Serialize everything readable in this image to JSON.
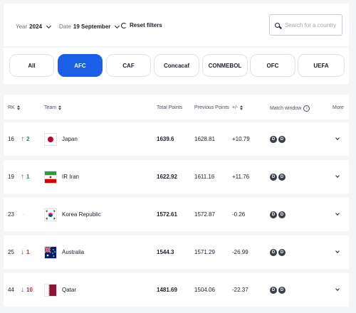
{
  "filters": {
    "year_label": "Year",
    "year_value": "2024",
    "date_label": "Date",
    "date_value": "19 September",
    "reset_label": "Reset filters",
    "search_placeholder": "Search for a country"
  },
  "tabs": [
    {
      "label": "All",
      "active": false
    },
    {
      "label": "AFC",
      "active": true
    },
    {
      "label": "CAF",
      "active": false
    },
    {
      "label": "Concacaf",
      "active": false
    },
    {
      "label": "CONMEBOL",
      "active": false
    },
    {
      "label": "OFC",
      "active": false
    },
    {
      "label": "UEFA",
      "active": false
    }
  ],
  "table": {
    "headers": {
      "rk": "RK",
      "team": "Team",
      "total": "Total Points",
      "previous": "Previous Points",
      "diff": "+/-",
      "match_window": "Match window",
      "more": "More"
    },
    "rows": [
      {
        "rank": "16",
        "move_dir": "up",
        "move": "2",
        "team": "Japan",
        "total": "1639.6",
        "previous": "1628.81",
        "diff": "+10.79",
        "windows": [
          "D",
          "D"
        ]
      },
      {
        "rank": "19",
        "move_dir": "up",
        "move": "1",
        "team": "IR Iran",
        "total": "1622.92",
        "previous": "1611.16",
        "diff": "+11.76",
        "windows": [
          "D",
          "D"
        ]
      },
      {
        "rank": "23",
        "move_dir": "none",
        "move": "",
        "team": "Korea Republic",
        "total": "1572.61",
        "previous": "1572.87",
        "diff": "-0.26",
        "windows": [
          "D",
          "D"
        ]
      },
      {
        "rank": "25",
        "move_dir": "down",
        "move": "1",
        "team": "Australia",
        "total": "1544.3",
        "previous": "1571.29",
        "diff": "-26.99",
        "windows": [
          "D",
          "D"
        ]
      },
      {
        "rank": "44",
        "move_dir": "down",
        "move": "10",
        "team": "Qatar",
        "total": "1481.69",
        "previous": "1504.06",
        "diff": "-22.37",
        "windows": [
          "D",
          "D"
        ]
      }
    ]
  },
  "icons": {
    "year_chevron": "chevron-down-icon",
    "date_chevron": "chevron-down-icon",
    "reset": "refresh-icon",
    "search": "search-icon",
    "sort": "sort-icon",
    "info": "info-icon",
    "expand": "chevron-down-icon"
  },
  "colors": {
    "accent": "#1a5fe6",
    "up": "#1f8a4c",
    "down": "#d8232a",
    "dot": "#3a3d4a"
  }
}
